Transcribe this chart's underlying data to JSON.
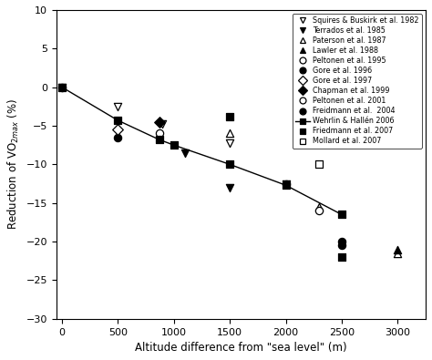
{
  "xlabel": "Altitude difference from \"sea level\" (m)",
  "ylabel": "Reduction of VO$_{2max}$ (%)",
  "xlim": [
    -50,
    3250
  ],
  "ylim": [
    -30,
    10
  ],
  "xticks": [
    0,
    500,
    1000,
    1500,
    2000,
    2500,
    3000
  ],
  "yticks": [
    -30,
    -25,
    -20,
    -15,
    -10,
    -5,
    0,
    5,
    10
  ],
  "series": [
    {
      "label": "Squires & Buskirk et al. 1982",
      "marker": "v",
      "fc": "white",
      "ec": "black",
      "points": [
        [
          0,
          0
        ],
        [
          500,
          -2.5
        ],
        [
          900,
          -4.8
        ],
        [
          1500,
          -7.2
        ],
        [
          2000,
          -12.5
        ]
      ]
    },
    {
      "label": "Terrados et al. 1985",
      "marker": "v",
      "fc": "black",
      "ec": "black",
      "points": [
        [
          1100,
          -8.5
        ],
        [
          1500,
          -13.0
        ]
      ]
    },
    {
      "label": "Paterson et al. 1987",
      "marker": "^",
      "fc": "white",
      "ec": "black",
      "points": [
        [
          1500,
          -6.0
        ],
        [
          2300,
          -15.5
        ],
        [
          3000,
          -21.5
        ]
      ]
    },
    {
      "label": "Lawler et al. 1988",
      "marker": "^",
      "fc": "black",
      "ec": "black",
      "points": [
        [
          3000,
          -21.0
        ]
      ]
    },
    {
      "label": "Peltonen et al. 1995",
      "marker": "o",
      "fc": "white",
      "ec": "black",
      "points": [
        [
          0,
          0
        ],
        [
          2300,
          -16.0
        ]
      ]
    },
    {
      "label": "Gore et al. 1996",
      "marker": "o",
      "fc": "black",
      "ec": "black",
      "points": [
        [
          500,
          -6.5
        ],
        [
          2500,
          -20.0
        ]
      ]
    },
    {
      "label": "Gore et al. 1997",
      "marker": "D",
      "fc": "white",
      "ec": "black",
      "points": [
        [
          500,
          -5.5
        ]
      ]
    },
    {
      "label": "Chapman et al. 1999",
      "marker": "D",
      "fc": "black",
      "ec": "black",
      "points": [
        [
          870,
          -4.5
        ]
      ]
    },
    {
      "label": "Peltonen et al. 2001",
      "marker": "o",
      "fc": "white",
      "ec": "black",
      "points": [
        [
          870,
          -6.0
        ],
        [
          2000,
          -12.5
        ]
      ]
    },
    {
      "label": "Freidmann et al.  2004",
      "marker": "o",
      "fc": "black",
      "ec": "black",
      "points": [
        [
          2500,
          -20.5
        ]
      ]
    },
    {
      "label": "Wehrlin & Hallén 2006",
      "marker": "s",
      "fc": "black",
      "ec": "black",
      "line": true,
      "points": [
        [
          0,
          0
        ],
        [
          500,
          -4.3
        ],
        [
          870,
          -6.8
        ],
        [
          1000,
          -7.5
        ],
        [
          1500,
          -10.0
        ],
        [
          2000,
          -12.7
        ],
        [
          2500,
          -16.5
        ]
      ]
    },
    {
      "label": "Friedmann et al. 2007",
      "marker": "s",
      "fc": "black",
      "ec": "black",
      "points": [
        [
          1500,
          -3.8
        ],
        [
          2500,
          -22.0
        ]
      ]
    },
    {
      "label": "Mollard et al. 2007",
      "marker": "s",
      "fc": "white",
      "ec": "black",
      "points": [
        [
          2300,
          -10.0
        ]
      ]
    }
  ]
}
